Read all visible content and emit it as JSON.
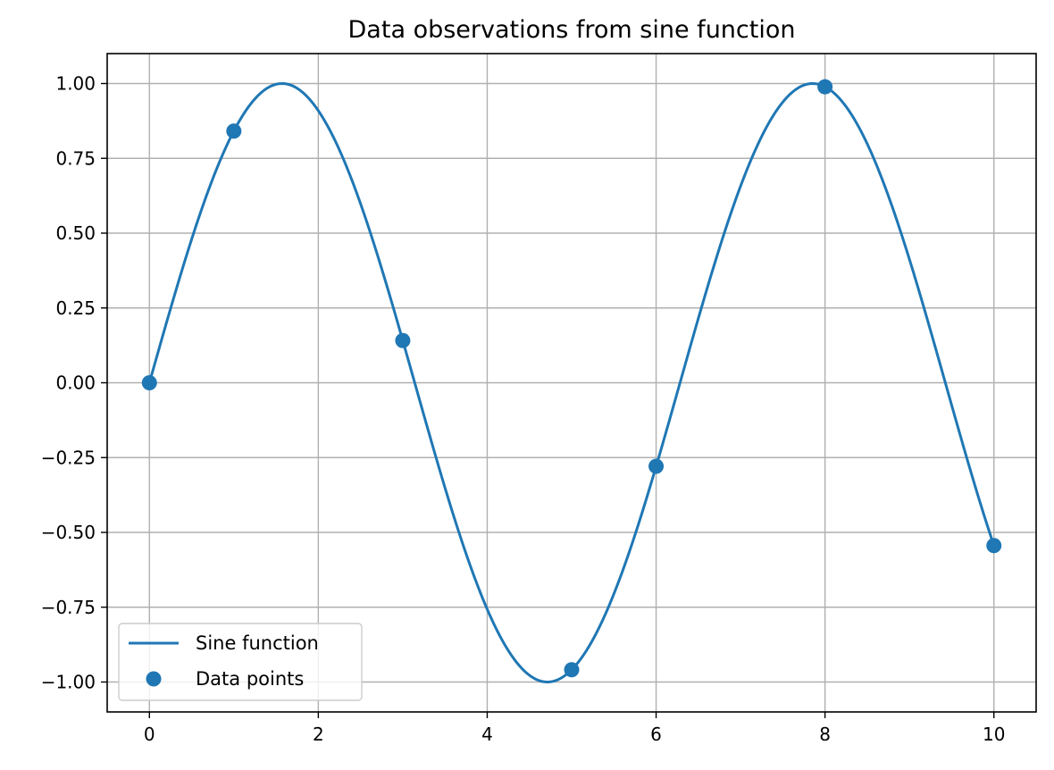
{
  "chart_data": {
    "type": "line",
    "title": "Data observations from sine function",
    "xlabel": "",
    "ylabel": "",
    "xlim": [
      -0.5,
      10.5
    ],
    "ylim": [
      -1.1,
      1.1
    ],
    "x_ticks": [
      0,
      2,
      4,
      6,
      8,
      10
    ],
    "y_ticks": [
      1.0,
      0.75,
      0.5,
      0.25,
      0.0,
      -0.25,
      -0.5,
      -0.75,
      -1.0
    ],
    "x_tick_labels": [
      "0",
      "2",
      "4",
      "6",
      "8",
      "10"
    ],
    "y_tick_labels": [
      "1.00",
      "0.75",
      "0.50",
      "0.25",
      "0.00",
      "−0.25",
      "−0.50",
      "−0.75",
      "−1.00"
    ],
    "grid": true,
    "legend_position": "lower-left",
    "series": [
      {
        "name": "Sine function",
        "kind": "line",
        "function": "sin(x)",
        "x_range": [
          0,
          10
        ],
        "color": "#1f77b4"
      },
      {
        "name": "Data points",
        "kind": "scatter",
        "color": "#1f77b4",
        "points": [
          {
            "x": 0,
            "y": 0.0
          },
          {
            "x": 1,
            "y": 0.841
          },
          {
            "x": 3,
            "y": 0.141
          },
          {
            "x": 5,
            "y": -0.959
          },
          {
            "x": 6,
            "y": -0.279
          },
          {
            "x": 8,
            "y": 0.989
          },
          {
            "x": 10,
            "y": -0.544
          }
        ]
      }
    ]
  }
}
